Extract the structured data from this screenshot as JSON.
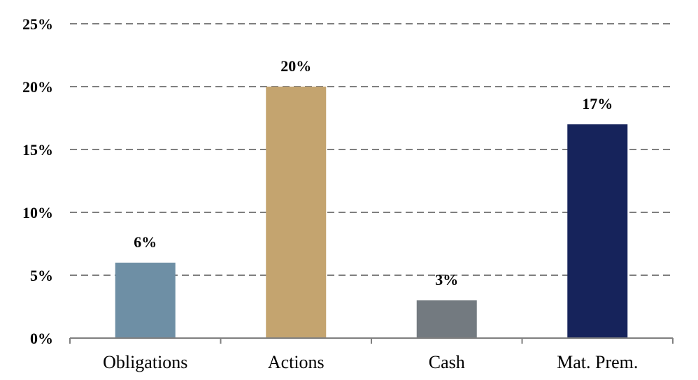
{
  "chart_data": {
    "type": "bar",
    "categories": [
      "Obligations",
      "Actions",
      "Cash",
      "Mat. Prem."
    ],
    "values": [
      6,
      20,
      3,
      17
    ],
    "data_labels": [
      "6%",
      "20%",
      "3%",
      "17%"
    ],
    "colors": [
      "#6e8fa5",
      "#c4a46f",
      "#737a80",
      "#16235b"
    ],
    "ylim": [
      0,
      25
    ],
    "yticks": [
      0,
      5,
      10,
      15,
      20,
      25
    ],
    "ytick_labels": [
      "0%",
      "5%",
      "10%",
      "15%",
      "20%",
      "25%"
    ],
    "grid": true,
    "legend": "none",
    "title": "",
    "xlabel": "",
    "ylabel": ""
  }
}
